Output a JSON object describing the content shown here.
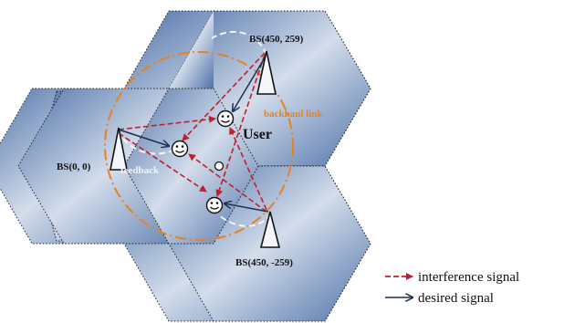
{
  "labels": {
    "bs_top": "BS(450,  259)",
    "bs_left": "BS(0, 0)",
    "bs_bottom": "BS(450,  -259)",
    "user": "User",
    "backhaul": "backhaul link",
    "feedback": "feedback"
  },
  "legend": {
    "interference": "interference signal",
    "desired": "desired signal"
  },
  "colors": {
    "interference": "#c0202a",
    "desired": "#1f2f52",
    "backhaul": "#e8821e",
    "feedback": "#f4f4f4",
    "hex_dark": "#4f72a8",
    "hex_light": "#d3ddeb"
  },
  "icons": {
    "base_station": "triangle-antenna-icon",
    "user": "smiley-face-icon",
    "center": "small-circle-icon"
  }
}
